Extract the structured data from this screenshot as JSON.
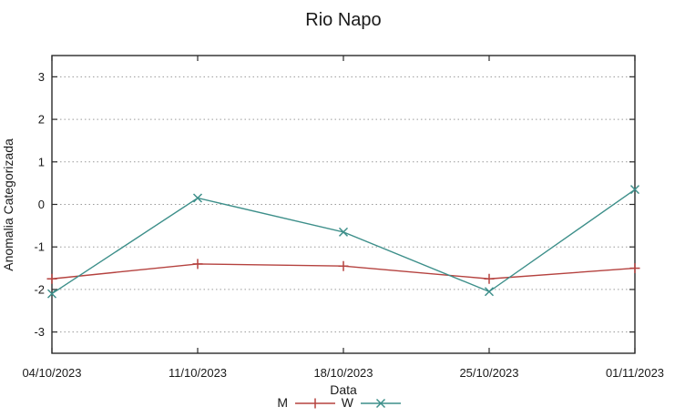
{
  "chart_data": {
    "type": "line",
    "title": "Rio Napo",
    "xlabel": "Data",
    "ylabel": "Anomalia Categorizada",
    "categories": [
      "04/10/2023",
      "11/10/2023",
      "18/10/2023",
      "25/10/2023",
      "01/11/2023"
    ],
    "series": [
      {
        "name": "M",
        "color": "#b5423f",
        "marker": "plus",
        "values": [
          -1.75,
          -1.4,
          -1.45,
          -1.75,
          -1.5
        ]
      },
      {
        "name": "W",
        "color": "#3d8f8a",
        "marker": "cross",
        "values": [
          -2.1,
          0.15,
          -0.65,
          -2.05,
          0.35
        ]
      }
    ],
    "ylim": [
      -3.5,
      3.5
    ],
    "yticks": [
      -3,
      -2,
      -1,
      0,
      1,
      2,
      3
    ],
    "grid": true,
    "legend_position": "bottom-center",
    "colors": {
      "background": "#ffffff",
      "border": "#2a2a2a",
      "gridline": "#9a9a9a",
      "text": "#1a1a1a"
    }
  }
}
